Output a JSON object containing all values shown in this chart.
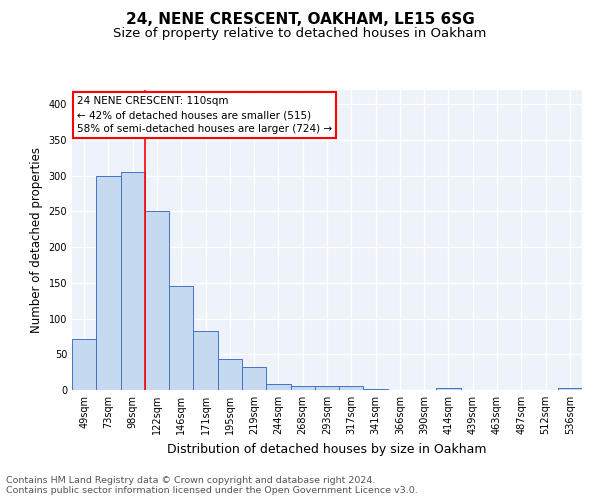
{
  "title1": "24, NENE CRESCENT, OAKHAM, LE15 6SG",
  "title2": "Size of property relative to detached houses in Oakham",
  "xlabel": "Distribution of detached houses by size in Oakham",
  "ylabel": "Number of detached properties",
  "categories": [
    "49sqm",
    "73sqm",
    "98sqm",
    "122sqm",
    "146sqm",
    "171sqm",
    "195sqm",
    "219sqm",
    "244sqm",
    "268sqm",
    "293sqm",
    "317sqm",
    "341sqm",
    "366sqm",
    "390sqm",
    "414sqm",
    "439sqm",
    "463sqm",
    "487sqm",
    "512sqm",
    "536sqm"
  ],
  "values": [
    72,
    300,
    305,
    250,
    145,
    83,
    44,
    32,
    9,
    6,
    5,
    5,
    2,
    0,
    0,
    3,
    0,
    0,
    0,
    0,
    3
  ],
  "bar_color": "#c5d9f1",
  "bar_edge_color": "#4472c4",
  "annotation_line_label": "24 NENE CRESCENT: 110sqm",
  "annotation_smaller": "← 42% of detached houses are smaller (515)",
  "annotation_larger": "58% of semi-detached houses are larger (724) →",
  "annotation_box_color": "white",
  "annotation_box_edge_color": "red",
  "vline_color": "red",
  "vline_x_index": 2.5,
  "ylim": [
    0,
    420
  ],
  "yticks": [
    0,
    50,
    100,
    150,
    200,
    250,
    300,
    350,
    400
  ],
  "background_color": "#eef2f9",
  "grid_color": "white",
  "footnote": "Contains HM Land Registry data © Crown copyright and database right 2024.\nContains public sector information licensed under the Open Government Licence v3.0.",
  "title1_fontsize": 11,
  "title2_fontsize": 9.5,
  "xlabel_fontsize": 9,
  "ylabel_fontsize": 8.5,
  "tick_fontsize": 7,
  "footnote_fontsize": 6.8
}
